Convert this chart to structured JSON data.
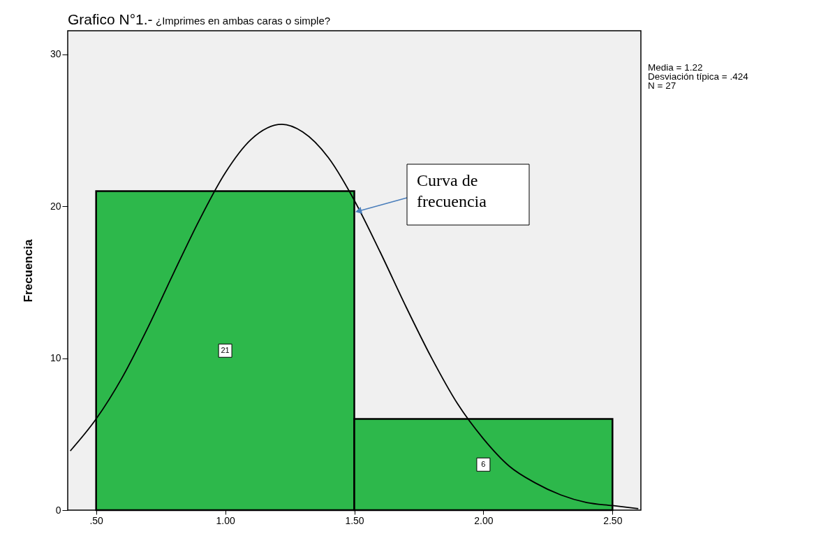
{
  "chart_data": {
    "type": "histogram",
    "title": "Grafico N°1.-",
    "subtitle": "¿Imprimes en ambas caras o simple?",
    "ylabel": "Frecuencia",
    "bins": [
      0.5,
      1.5,
      2.5
    ],
    "values": [
      21,
      6
    ],
    "color": "#2db84b",
    "value_labels": [
      "21",
      "6"
    ],
    "xlim": [
      0.39,
      2.61
    ],
    "xticks": [
      {
        "value": 0.5,
        "label": ".50"
      },
      {
        "value": 1.0,
        "label": "1.00"
      },
      {
        "value": 1.5,
        "label": "1.50"
      },
      {
        "value": 2.0,
        "label": "2.00"
      },
      {
        "value": 2.5,
        "label": "2.50"
      }
    ],
    "ylim": [
      0,
      31.56
    ],
    "yticks": [
      0,
      10,
      20,
      30
    ],
    "grid": false,
    "series": [
      {
        "type": "line",
        "color": "#000000",
        "x": [
          0.4,
          0.5,
          0.6,
          0.7,
          0.8,
          0.9,
          1.0,
          1.1,
          1.22,
          1.3,
          1.4,
          1.5,
          1.6,
          1.7,
          1.8,
          1.9,
          2.0,
          2.1,
          2.2,
          2.3,
          2.4,
          2.5,
          2.6
        ],
        "values": [
          3.9,
          6.0,
          8.7,
          12.0,
          15.6,
          19.1,
          22.2,
          24.4,
          25.4,
          24.9,
          23.2,
          20.4,
          17.0,
          13.4,
          10.0,
          7.0,
          4.7,
          2.9,
          1.8,
          1.0,
          0.5,
          0.3,
          0.1
        ]
      }
    ],
    "annotations": [
      "Media = 1.22",
      "Desviación típica = .424",
      "N = 27",
      {
        "text": "Curva de frecuencia",
        "x": 1.52,
        "y": 19.7
      }
    ]
  }
}
